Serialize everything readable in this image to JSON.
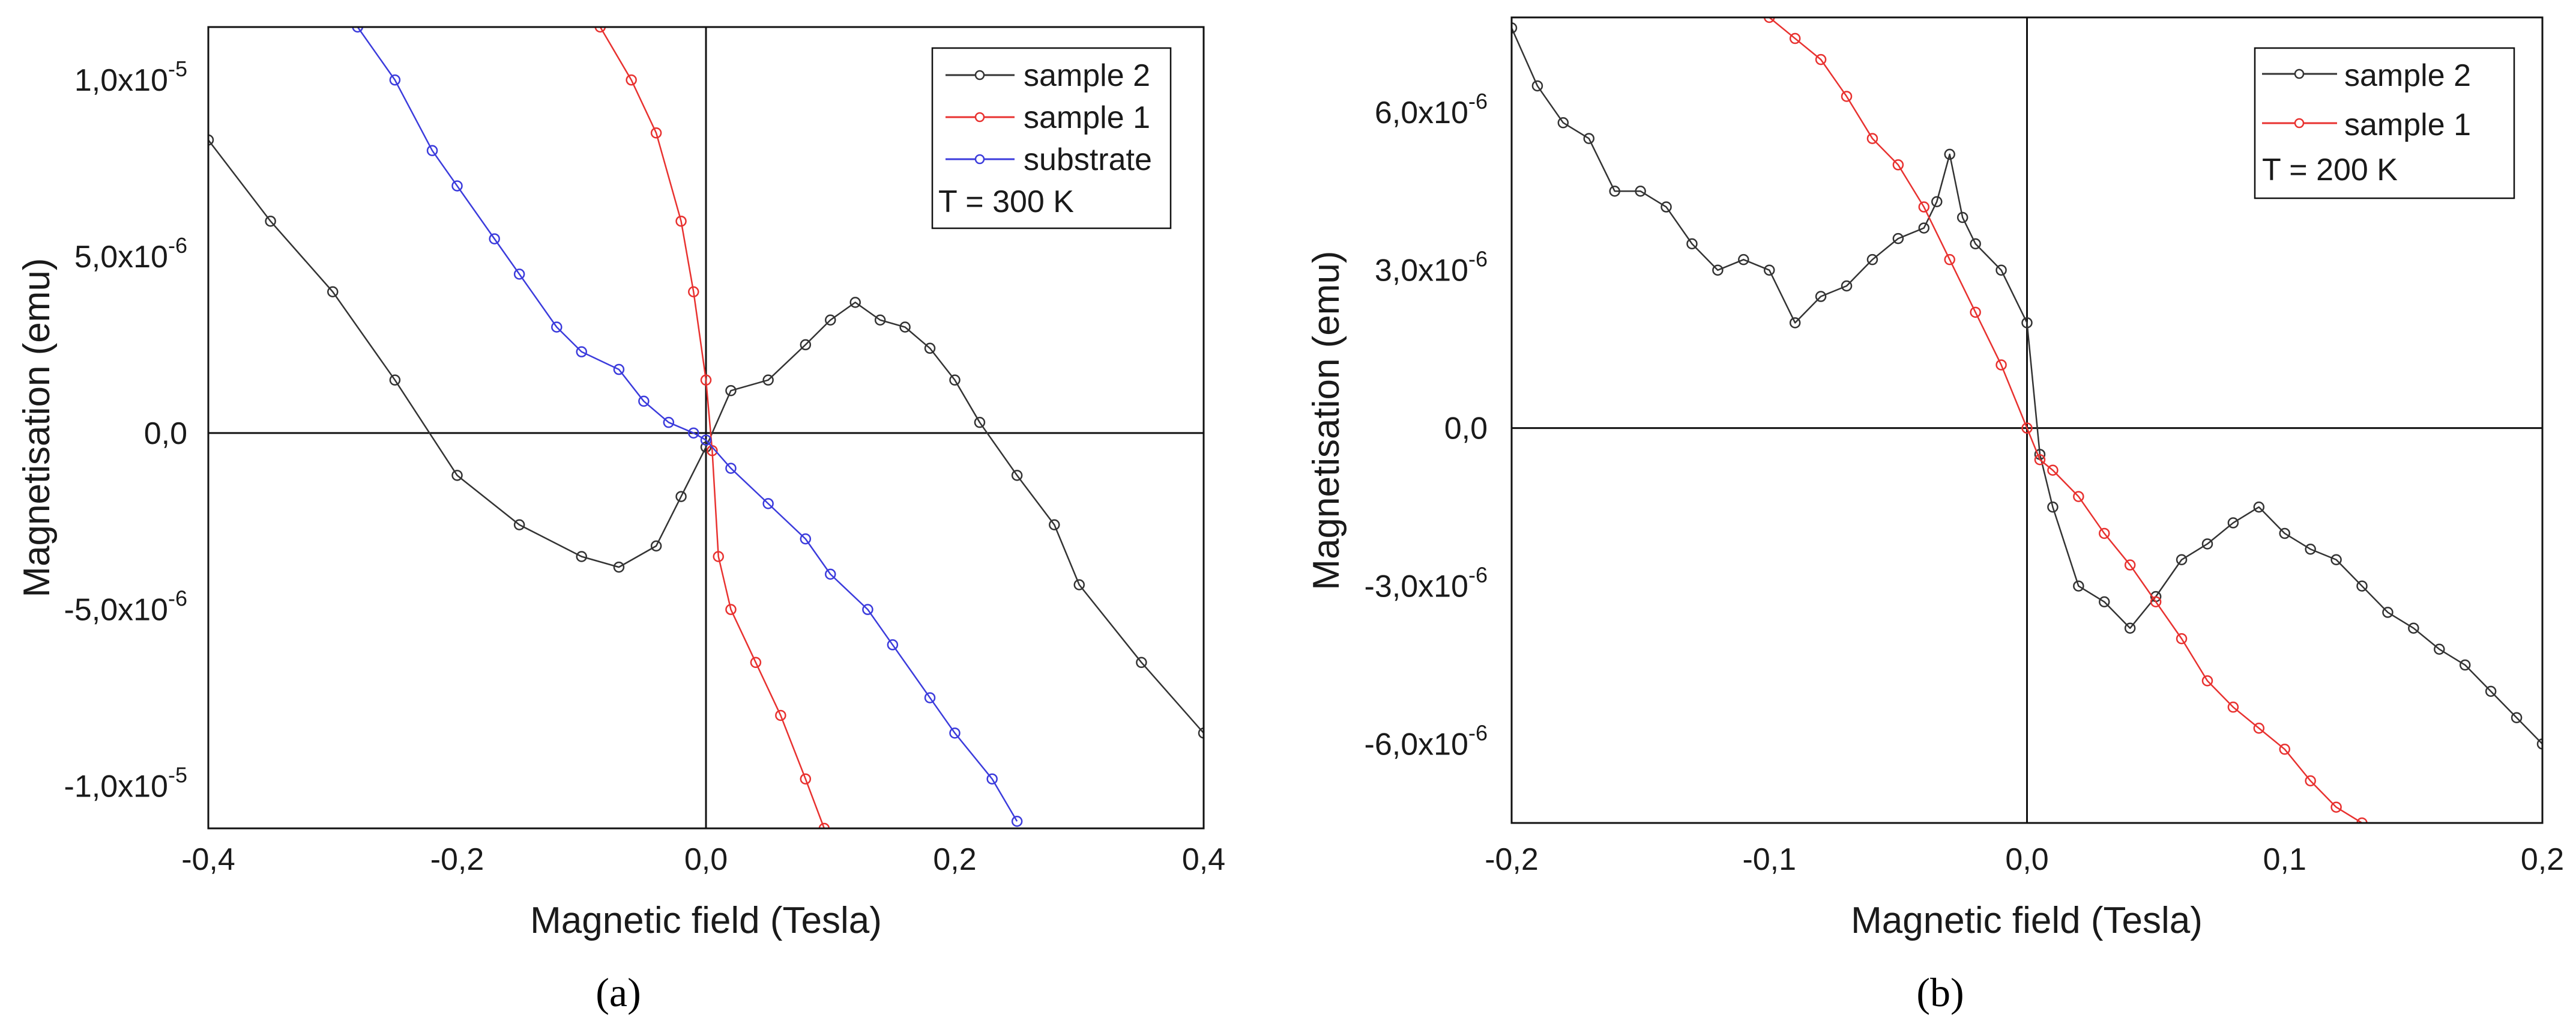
{
  "figure": {
    "panels": [
      "(a)",
      "(b)"
    ]
  },
  "chart_data": [
    {
      "type": "line",
      "panel_label": "(a)",
      "title": "",
      "xlabel": "Magnetic field (Tesla)",
      "ylabel": "Magnetisation (emu)",
      "xlim": [
        -0.4,
        0.4
      ],
      "ylim": [
        -1.12e-05,
        1.15e-05
      ],
      "xticks": [
        -0.4,
        -0.2,
        0.0,
        0.2,
        0.4
      ],
      "xtick_labels": [
        "-0,4",
        "-0,2",
        "0,0",
        "0,2",
        "0,4"
      ],
      "yticks": [
        1e-05,
        5e-06,
        0.0,
        -5e-06,
        -1e-05
      ],
      "ytick_labels": [
        {
          "mantissa": "1,0x10",
          "exp": "-5"
        },
        {
          "mantissa": "5,0x10",
          "exp": "-6"
        },
        {
          "mantissa": "0,0",
          "exp": ""
        },
        {
          "mantissa": "-5,0x10",
          "exp": "-6"
        },
        {
          "mantissa": "-1,0x10",
          "exp": "-5"
        }
      ],
      "legend": {
        "position": "top-right",
        "entries": [
          "sample 2",
          "sample 1",
          "substrate"
        ],
        "note": "T = 300 K"
      },
      "series": [
        {
          "name": "sample 2",
          "color": "#333333",
          "x": [
            -0.4,
            -0.35,
            -0.3,
            -0.25,
            -0.2,
            -0.15,
            -0.1,
            -0.07,
            -0.04,
            -0.02,
            0.0,
            0.02,
            0.05,
            0.08,
            0.1,
            0.12,
            0.14,
            0.16,
            0.18,
            0.2,
            0.22,
            0.25,
            0.28,
            0.3,
            0.35,
            0.4
          ],
          "y": [
            8.3e-06,
            6e-06,
            4e-06,
            1.5e-06,
            -1.2e-06,
            -2.6e-06,
            -3.5e-06,
            -3.8e-06,
            -3.2e-06,
            -1.8e-06,
            -4e-07,
            1.2e-06,
            1.5e-06,
            2.5e-06,
            3.2e-06,
            3.7e-06,
            3.2e-06,
            3e-06,
            2.4e-06,
            1.5e-06,
            3e-07,
            -1.2e-06,
            -2.6e-06,
            -4.3e-06,
            -6.5e-06,
            -8.5e-06
          ]
        },
        {
          "name": "sample 1",
          "color": "#e8312f",
          "x": [
            -0.085,
            -0.06,
            -0.04,
            -0.02,
            -0.01,
            0.0,
            0.005,
            0.01,
            0.02,
            0.04,
            0.06,
            0.08,
            0.095
          ],
          "y": [
            1.15e-05,
            1e-05,
            8.5e-06,
            6e-06,
            4e-06,
            1.5e-06,
            -5e-07,
            -3.5e-06,
            -5e-06,
            -6.5e-06,
            -8e-06,
            -9.8e-06,
            -1.12e-05
          ]
        },
        {
          "name": "substrate",
          "color": "#3b3bdc",
          "x": [
            -0.28,
            -0.25,
            -0.22,
            -0.2,
            -0.17,
            -0.15,
            -0.12,
            -0.1,
            -0.07,
            -0.05,
            -0.03,
            -0.01,
            0.0,
            0.02,
            0.05,
            0.08,
            0.1,
            0.13,
            0.15,
            0.18,
            0.2,
            0.23,
            0.25
          ],
          "y": [
            1.15e-05,
            1e-05,
            8e-06,
            7e-06,
            5.5e-06,
            4.5e-06,
            3e-06,
            2.3e-06,
            1.8e-06,
            9e-07,
            3e-07,
            0.0,
            -2e-07,
            -1e-06,
            -2e-06,
            -3e-06,
            -4e-06,
            -5e-06,
            -6e-06,
            -7.5e-06,
            -8.5e-06,
            -9.8e-06,
            -1.1e-05
          ]
        }
      ]
    },
    {
      "type": "line",
      "panel_label": "(b)",
      "title": "",
      "xlabel": "Magnetic field (Tesla)",
      "ylabel": "Magnetisation (emu)",
      "xlim": [
        -0.2,
        0.2
      ],
      "ylim": [
        -7.5e-06,
        7.8e-06
      ],
      "xticks": [
        -0.2,
        -0.1,
        0.0,
        0.1,
        0.2
      ],
      "xtick_labels": [
        "-0,2",
        "-0,1",
        "0,0",
        "0,1",
        "0,2"
      ],
      "yticks": [
        6e-06,
        3e-06,
        0.0,
        -3e-06,
        -6e-06
      ],
      "ytick_labels": [
        {
          "mantissa": "6,0x10",
          "exp": "-6"
        },
        {
          "mantissa": "3,0x10",
          "exp": "-6"
        },
        {
          "mantissa": "0,0",
          "exp": ""
        },
        {
          "mantissa": "-3,0x10",
          "exp": "-6"
        },
        {
          "mantissa": "-6,0x10",
          "exp": "-6"
        }
      ],
      "legend": {
        "position": "top-right",
        "entries": [
          "sample 2",
          "sample 1"
        ],
        "note": "T = 200 K"
      },
      "series": [
        {
          "name": "sample 2",
          "color": "#333333",
          "x": [
            -0.2,
            -0.19,
            -0.18,
            -0.17,
            -0.16,
            -0.15,
            -0.14,
            -0.13,
            -0.12,
            -0.11,
            -0.1,
            -0.09,
            -0.08,
            -0.07,
            -0.06,
            -0.05,
            -0.04,
            -0.035,
            -0.03,
            -0.025,
            -0.02,
            -0.01,
            0.0,
            0.005,
            0.01,
            0.02,
            0.03,
            0.04,
            0.05,
            0.06,
            0.07,
            0.08,
            0.09,
            0.1,
            0.11,
            0.12,
            0.13,
            0.14,
            0.15,
            0.16,
            0.17,
            0.18,
            0.19,
            0.2
          ],
          "y": [
            7.6e-06,
            6.5e-06,
            5.8e-06,
            5.5e-06,
            4.5e-06,
            4.5e-06,
            4.2e-06,
            3.5e-06,
            3e-06,
            3.2e-06,
            3e-06,
            2e-06,
            2.5e-06,
            2.7e-06,
            3.2e-06,
            3.6e-06,
            3.8e-06,
            4.3e-06,
            5.2e-06,
            4e-06,
            3.5e-06,
            3e-06,
            2e-06,
            -5e-07,
            -1.5e-06,
            -3e-06,
            -3.3e-06,
            -3.8e-06,
            -3.2e-06,
            -2.5e-06,
            -2.2e-06,
            -1.8e-06,
            -1.5e-06,
            -2e-06,
            -2.3e-06,
            -2.5e-06,
            -3e-06,
            -3.5e-06,
            -3.8e-06,
            -4.2e-06,
            -4.5e-06,
            -5e-06,
            -5.5e-06,
            -6e-06
          ]
        },
        {
          "name": "sample 1",
          "color": "#e8312f",
          "x": [
            -0.1,
            -0.09,
            -0.08,
            -0.07,
            -0.06,
            -0.05,
            -0.04,
            -0.03,
            -0.02,
            -0.01,
            0.0,
            0.005,
            0.01,
            0.02,
            0.03,
            0.04,
            0.05,
            0.06,
            0.07,
            0.08,
            0.09,
            0.1,
            0.11,
            0.12,
            0.13
          ],
          "y": [
            7.8e-06,
            7.4e-06,
            7e-06,
            6.3e-06,
            5.5e-06,
            5e-06,
            4.2e-06,
            3.2e-06,
            2.2e-06,
            1.2e-06,
            0.0,
            -6e-07,
            -8e-07,
            -1.3e-06,
            -2e-06,
            -2.6e-06,
            -3.3e-06,
            -4e-06,
            -4.8e-06,
            -5.3e-06,
            -5.7e-06,
            -6.1e-06,
            -6.7e-06,
            -7.2e-06,
            -7.5e-06
          ]
        }
      ]
    }
  ]
}
